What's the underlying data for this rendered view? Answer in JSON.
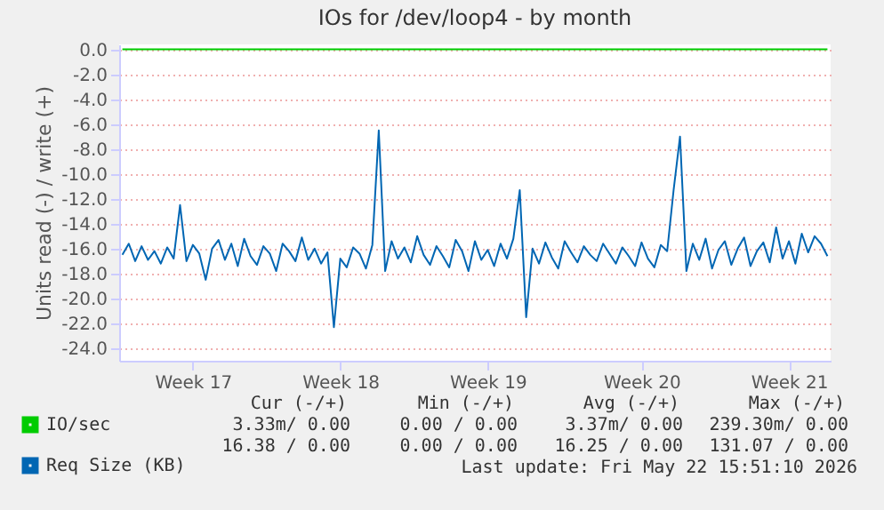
{
  "chart_data": {
    "type": "line",
    "title": "IOs for /dev/loop4 - by month",
    "ylabel": "Units read (-) / write (+)",
    "categories": [
      null,
      null,
      null,
      null,
      null,
      null,
      null,
      null,
      null,
      null,
      null,
      "Week 17",
      null,
      null,
      null,
      null,
      null,
      null,
      null,
      null,
      null,
      null,
      null,
      null,
      null,
      null,
      null,
      null,
      null,
      null,
      null,
      null,
      null,
      null,
      "Week 18",
      null,
      null,
      null,
      null,
      null,
      null,
      null,
      null,
      null,
      null,
      null,
      null,
      null,
      null,
      null,
      null,
      null,
      null,
      null,
      null,
      null,
      null,
      "Week 19",
      null,
      null,
      null,
      null,
      null,
      null,
      null,
      null,
      null,
      null,
      null,
      null,
      null,
      null,
      null,
      null,
      null,
      null,
      null,
      null,
      null,
      null,
      null,
      "Week 20",
      null,
      null,
      null,
      null,
      null,
      null,
      null,
      null,
      null,
      null,
      null,
      null,
      null,
      null,
      null,
      null,
      null,
      null,
      null,
      null,
      null,
      null,
      "Week 21",
      null,
      null,
      null,
      null,
      null,
      null
    ],
    "ylim": [
      -25,
      0.4
    ],
    "yticks": [
      {
        "value": 0,
        "label": "0.0"
      },
      {
        "value": -2,
        "label": "-2.0"
      },
      {
        "value": -4,
        "label": "-4.0"
      },
      {
        "value": -6,
        "label": "-6.0"
      },
      {
        "value": -8,
        "label": "-8.0"
      },
      {
        "value": -10,
        "label": "-10.0"
      },
      {
        "value": -12,
        "label": "-12.0"
      },
      {
        "value": -14,
        "label": "-14.0"
      },
      {
        "value": -16,
        "label": "-16.0"
      },
      {
        "value": -18,
        "label": "-18.0"
      },
      {
        "value": -20,
        "label": "-20.0"
      },
      {
        "value": -22,
        "label": "-22.0"
      },
      {
        "value": -24,
        "label": "-24.0"
      }
    ],
    "grid": "y",
    "legend": "bottom left",
    "series": [
      {
        "name": "IO/sec",
        "color": "#00cc00",
        "values": [
          0,
          0,
          0,
          0,
          0,
          0,
          0,
          0,
          0,
          0,
          0,
          0,
          0,
          0,
          0,
          0,
          0,
          0,
          0,
          0,
          0,
          0,
          0,
          0,
          0,
          0,
          0,
          0,
          0,
          0,
          0,
          0,
          0,
          0,
          0,
          0,
          0,
          0,
          0,
          0,
          0,
          0,
          0,
          0,
          0,
          0,
          0,
          0,
          0,
          0,
          0,
          0,
          0,
          0,
          0,
          0,
          0,
          0,
          0,
          0,
          0,
          0,
          0,
          0,
          0,
          0,
          0,
          0,
          0,
          0,
          0,
          0,
          0,
          0,
          0,
          0,
          0,
          0,
          0,
          0,
          0,
          0,
          0,
          0,
          0,
          0,
          0,
          0,
          0,
          0,
          0,
          0,
          0,
          0,
          0,
          0,
          0,
          0,
          0,
          0,
          0,
          0,
          0,
          0,
          0,
          0,
          0,
          0,
          0,
          0,
          0
        ]
      },
      {
        "name": "Req Size (KB)",
        "color": "#0066b3",
        "values": [
          -16.5,
          -15.6,
          -17,
          -15.8,
          -16.9,
          -16.2,
          -17.2,
          -15.9,
          -16.8,
          -12.5,
          -17,
          -15.7,
          -16.4,
          -18.5,
          -16,
          -15.3,
          -16.9,
          -15.6,
          -17.4,
          -15.2,
          -16.6,
          -17.3,
          -15.8,
          -16.4,
          -17.8,
          -15.6,
          -16.2,
          -17,
          -15.1,
          -16.9,
          -16,
          -17.2,
          -16.3,
          -22.3,
          -16.8,
          -17.5,
          -15.9,
          -16.4,
          -17.6,
          -15.7,
          -6.5,
          -17.8,
          -15.4,
          -16.8,
          -15.9,
          -17.1,
          -15,
          -16.5,
          -17.3,
          -15.8,
          -16.6,
          -17.5,
          -15.3,
          -16.2,
          -17.8,
          -15.4,
          -16.9,
          -16.1,
          -17.4,
          -15.6,
          -16.8,
          -15.2,
          -11.3,
          -21.5,
          -16,
          -17.2,
          -15.5,
          -16.7,
          -17.6,
          -15.4,
          -16.3,
          -17.1,
          -15.8,
          -16.5,
          -17,
          -15.6,
          -16.4,
          -17.2,
          -15.9,
          -16.6,
          -17.4,
          -15.5,
          -16.8,
          -17.5,
          -15.7,
          -16.2,
          -11.3,
          -7,
          -17.8,
          -15.6,
          -16.9,
          -15.2,
          -17.6,
          -16.1,
          -15.4,
          -17.3,
          -16,
          -15.1,
          -17.4,
          -16.2,
          -15.5,
          -17.1,
          -14.3,
          -16.8,
          -15.4,
          -17.2,
          -14.8,
          -16.3,
          -15,
          -15.6,
          -16.6
        ]
      }
    ],
    "annotations": [
      "Cur (-/+)",
      "Min (-/+)",
      "Avg (-/+)",
      "Max (-/+)",
      "3.33m/ 0.00",
      "0.00 / 0.00",
      "3.37m/ 0.00",
      "239.30m/ 0.00",
      "16.38 / 0.00",
      "0.00 / 0.00",
      "16.25 / 0.00",
      "131.07 / 0.00",
      "Last update: Fri May 22 15:51:10 2026"
    ]
  }
}
